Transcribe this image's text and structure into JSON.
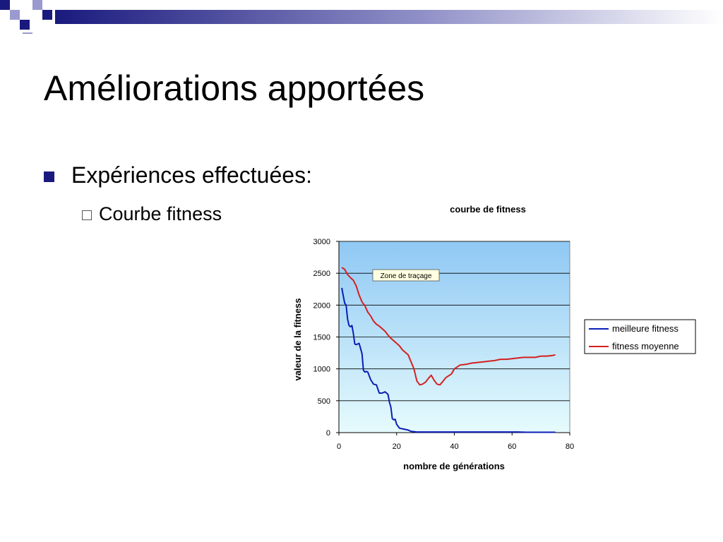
{
  "slide": {
    "title": "Améliorations apportées",
    "bullet1": "Expériences effectuées:",
    "bullet2": "Courbe fitness"
  },
  "colors": {
    "title_text": "#000000",
    "bullet_square": "#1a1a7e",
    "deco_dark": "#1a1a7e",
    "deco_light": "#9a9ad0",
    "plot_top": "#8fc8f4",
    "plot_bottom": "#e6fbfd",
    "series_best": "#0a1eb4",
    "series_avg": "#d42020"
  },
  "chart_data": {
    "type": "line",
    "title": "courbe de fitness",
    "xlabel": "nombre de générations",
    "ylabel": "valeur de la fitness",
    "xlim": [
      0,
      80
    ],
    "ylim": [
      0,
      3000
    ],
    "xticks": [
      0,
      20,
      40,
      60,
      80
    ],
    "yticks": [
      0,
      500,
      1000,
      1500,
      2000,
      2500,
      3000
    ],
    "grid": "horizontal",
    "legend_position": "right",
    "annotation": "Zone de traçage",
    "series": [
      {
        "name": "meilleure fitness",
        "color": "#0a1eb4",
        "x": [
          1,
          1.5,
          2,
          2.5,
          3,
          3.5,
          4,
          4.5,
          5,
          5.5,
          6,
          6.5,
          7,
          7.5,
          8,
          8.5,
          9,
          9.5,
          10,
          11,
          12,
          13,
          14,
          15,
          16,
          17,
          17.5,
          18,
          18.5,
          19,
          19.5,
          20,
          20.5,
          21,
          22,
          23,
          24,
          25,
          26,
          27,
          28,
          30,
          35,
          40,
          50,
          60,
          62,
          65,
          70,
          75
        ],
        "y": [
          2270,
          2150,
          2030,
          2000,
          1780,
          1680,
          1660,
          1680,
          1560,
          1390,
          1380,
          1390,
          1400,
          1320,
          1240,
          980,
          950,
          960,
          950,
          830,
          760,
          750,
          620,
          620,
          640,
          600,
          480,
          400,
          220,
          200,
          210,
          130,
          100,
          70,
          60,
          50,
          40,
          20,
          15,
          10,
          10,
          10,
          10,
          10,
          10,
          10,
          10,
          5,
          5,
          5
        ]
      },
      {
        "name": "fitness moyenne",
        "color": "#d42020",
        "x": [
          1,
          2,
          3,
          4,
          5,
          6,
          7,
          8,
          9,
          10,
          11,
          12,
          13,
          14,
          15,
          16,
          17,
          18,
          19,
          20,
          21,
          22,
          23,
          24,
          25,
          26,
          27,
          28,
          29,
          30,
          31,
          32,
          33,
          34,
          35,
          36,
          37,
          38,
          39,
          40,
          42,
          44,
          46,
          48,
          50,
          52,
          54,
          56,
          58,
          60,
          62,
          64,
          66,
          68,
          70,
          72,
          74,
          75
        ],
        "y": [
          2590,
          2560,
          2480,
          2430,
          2390,
          2300,
          2160,
          2050,
          1990,
          1890,
          1830,
          1750,
          1700,
          1670,
          1630,
          1590,
          1530,
          1480,
          1440,
          1400,
          1360,
          1300,
          1260,
          1220,
          1110,
          1000,
          810,
          750,
          760,
          790,
          850,
          900,
          820,
          760,
          750,
          800,
          860,
          890,
          920,
          1000,
          1060,
          1070,
          1090,
          1100,
          1110,
          1120,
          1130,
          1150,
          1150,
          1160,
          1170,
          1180,
          1180,
          1180,
          1200,
          1200,
          1210,
          1220
        ]
      }
    ]
  }
}
